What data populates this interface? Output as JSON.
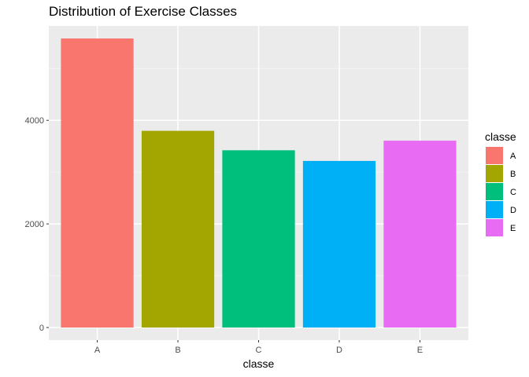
{
  "chart_data": {
    "type": "bar",
    "title": "Distribution of Exercise Classes",
    "xlabel": "classe",
    "ylabel": "",
    "categories": [
      "A",
      "B",
      "C",
      "D",
      "E"
    ],
    "values": [
      5580,
      3797,
      3422,
      3216,
      3607
    ],
    "ylim": [
      0,
      5800
    ],
    "yticks": [
      0,
      2000,
      4000
    ],
    "grid": true,
    "legend": {
      "title": "classe",
      "position": "right",
      "items": [
        "A",
        "B",
        "C",
        "D",
        "E"
      ]
    },
    "colors": [
      "#F8766D",
      "#A3A500",
      "#00BF7D",
      "#00B0F6",
      "#E76BF3"
    ]
  }
}
